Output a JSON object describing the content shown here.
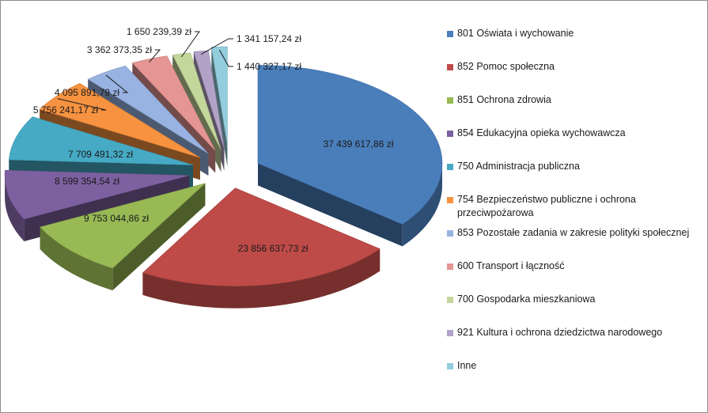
{
  "chart_data": {
    "type": "pie",
    "style": "exploded 3D pie",
    "legend_position": "right",
    "currency_suffix": "zł",
    "slices": [
      {
        "label": "801 Oświata i wychowanie",
        "value": 37439617.86,
        "value_label": "37 439 617,86 zł",
        "color": "#4a7ebb"
      },
      {
        "label": "852 Pomoc społeczna",
        "value": 23856637.73,
        "value_label": "23 856 637,73 zł",
        "color": "#be4b48"
      },
      {
        "label": "851 Ochrona zdrowia",
        "value": 9753044.86,
        "value_label": "9 753 044,86 zł",
        "color": "#98b954"
      },
      {
        "label": "854 Edukacyjna opieka wychowawcza",
        "value": 8599354.54,
        "value_label": "8 599 354,54 zł",
        "color": "#7d60a0"
      },
      {
        "label": "750 Administracja publiczna",
        "value": 7709491.32,
        "value_label": "7 709 491,32 zł",
        "color": "#46aac5"
      },
      {
        "label": "754 Bezpieczeństwo publiczne i ochrona przeciwpożarowa",
        "value": 5756241.17,
        "value_label": "5 756 241,17 zł",
        "color": "#f69240"
      },
      {
        "label": "853 Pozostałe zadania w zakresie polityki społecznej",
        "value": 4095891.79,
        "value_label": "4 095 891,79 zł",
        "color": "#98b3e2"
      },
      {
        "label": "600 Transport i łączność",
        "value": 3362373.35,
        "value_label": "3 362 373,35 zł",
        "color": "#e59594"
      },
      {
        "label": "700 Gospodarka mieszkaniowa",
        "value": 1650239.39,
        "value_label": "1 650 239,39 zł",
        "color": "#c3d69b"
      },
      {
        "label": "921 Kultura i ochrona dziedzictwa narodowego",
        "value": 1341157.24,
        "value_label": "1 341 157,24 zł",
        "color": "#b3a2c7"
      },
      {
        "label": "Inne",
        "value": 1440327.17,
        "value_label": "1 440 327,17 zł",
        "color": "#93cddd"
      }
    ]
  }
}
